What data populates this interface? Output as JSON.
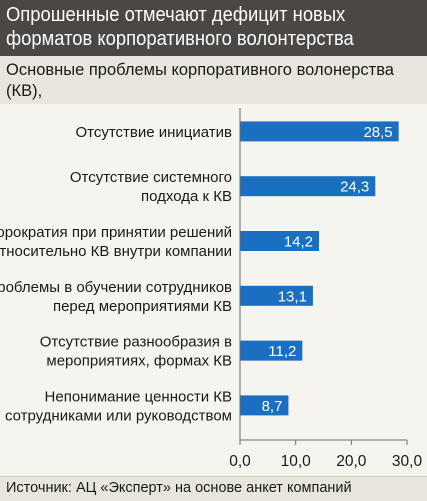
{
  "header": {
    "title": "Опрошенные отмечают дефицит новых\nформатов корпоративного волонтерства"
  },
  "chart_data": {
    "type": "bar",
    "orientation": "horizontal",
    "title": "Основные проблемы корпоративного волонерства (КВ),\n% ответов",
    "categories": [
      "Отсутствие инициатив",
      "Отсутствие системного\nподхода к КВ",
      "Бюрократия при принятии решений\nотносительно КВ внутри компании",
      "Проблемы в обучении сотрудников\nперед мероприятиями КВ",
      "Отсутствие разнообразия в\nмероприятиях, формах КВ",
      "Непонимание ценности КВ\nсотрудниками или руководством"
    ],
    "values": [
      28.5,
      24.3,
      14.2,
      13.1,
      11.2,
      8.7
    ],
    "value_labels": [
      "28,5",
      "24,3",
      "14,2",
      "13,1",
      "11,2",
      "8,7"
    ],
    "xlim": [
      0,
      30
    ],
    "xticks": [
      0,
      10,
      20,
      30
    ],
    "xtick_labels": [
      "0,0",
      "10,0",
      "20,0",
      "30,0"
    ],
    "grid": false,
    "bar_color": "#1a6fc0",
    "label_color": "#ffffff"
  },
  "footer": {
    "source": "Источник: АЦ «Эксперт» на основе анкет компаний"
  }
}
